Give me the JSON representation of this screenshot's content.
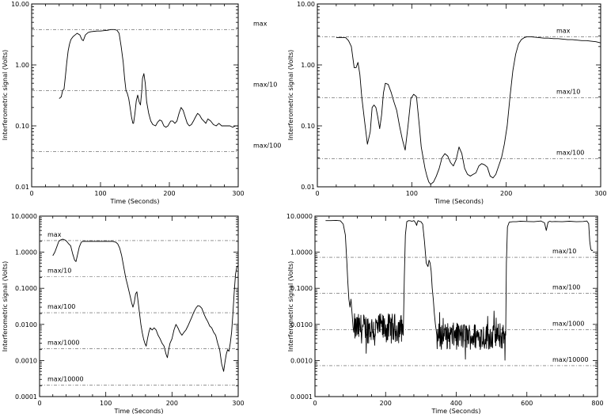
{
  "chart_data": [
    {
      "type": "line",
      "title": "",
      "xlabel": "Time (Seconds)",
      "ylabel": "Interferometric signal (Volts)",
      "xlim": [
        0,
        300
      ],
      "ylim": [
        0.01,
        10
      ],
      "yscale": "log",
      "xticks": [
        0,
        100,
        200,
        300
      ],
      "xtick_labels": [
        "0",
        "100",
        "200",
        "300"
      ],
      "yticks": [
        0.01,
        0.1,
        1,
        10
      ],
      "ytick_labels": [
        "0.01",
        "0.10",
        "1.00",
        "10.00"
      ],
      "grid": false,
      "reference_lines": [
        {
          "label": "max",
          "value": 3.8
        },
        {
          "label": "max/10",
          "value": 0.38
        },
        {
          "label": "max/100",
          "value": 0.038
        }
      ],
      "series": [
        {
          "x": [
            40,
            43,
            45,
            47,
            49,
            51,
            53,
            55,
            57,
            60,
            63,
            66,
            70,
            73,
            75,
            78,
            82,
            86,
            90,
            95,
            100,
            105,
            110,
            115,
            120,
            124,
            127,
            130,
            133,
            135,
            137,
            139,
            141,
            143,
            145,
            147,
            148,
            150,
            152,
            154,
            156,
            158,
            160,
            161,
            163,
            165,
            167,
            170,
            173,
            176,
            180,
            183,
            186,
            189,
            192,
            195,
            198,
            200,
            202,
            205,
            208,
            211,
            214,
            217,
            220,
            223,
            226,
            229,
            232,
            235,
            238,
            241,
            244,
            247,
            250,
            253,
            256,
            260,
            264,
            268,
            272,
            276,
            280,
            284,
            288,
            292,
            296,
            300
          ],
          "y": [
            0.28,
            0.3,
            0.38,
            0.4,
            0.65,
            1.1,
            1.7,
            2.2,
            2.6,
            2.9,
            3.1,
            3.3,
            3.1,
            2.6,
            2.5,
            3.1,
            3.4,
            3.5,
            3.55,
            3.6,
            3.6,
            3.65,
            3.7,
            3.8,
            3.8,
            3.7,
            3.3,
            2.0,
            1.1,
            0.6,
            0.38,
            0.34,
            0.28,
            0.2,
            0.14,
            0.11,
            0.11,
            0.16,
            0.26,
            0.32,
            0.25,
            0.22,
            0.38,
            0.6,
            0.72,
            0.5,
            0.25,
            0.16,
            0.12,
            0.105,
            0.1,
            0.115,
            0.125,
            0.12,
            0.1,
            0.095,
            0.1,
            0.11,
            0.12,
            0.12,
            0.11,
            0.12,
            0.16,
            0.2,
            0.18,
            0.14,
            0.11,
            0.1,
            0.105,
            0.12,
            0.14,
            0.16,
            0.15,
            0.13,
            0.12,
            0.11,
            0.13,
            0.12,
            0.105,
            0.1,
            0.11,
            0.1,
            0.1,
            0.1,
            0.1,
            0.095,
            0.1,
            0.1
          ]
        }
      ]
    },
    {
      "type": "line",
      "title": "",
      "xlabel": "Time (Seconds)",
      "ylabel": "Interferometric signal (Volts)",
      "xlim": [
        0,
        300
      ],
      "ylim": [
        0.01,
        10
      ],
      "yscale": "log",
      "xticks": [
        0,
        100,
        200,
        300
      ],
      "xtick_labels": [
        "0",
        "100",
        "200",
        "300"
      ],
      "yticks": [
        0.01,
        0.1,
        1,
        10
      ],
      "ytick_labels": [
        "0.01",
        "0.10",
        "1.00",
        "10.00"
      ],
      "grid": false,
      "reference_lines": [
        {
          "label": "max",
          "value": 2.9
        },
        {
          "label": "max/10",
          "value": 0.29
        },
        {
          "label": "max/100",
          "value": 0.029
        }
      ],
      "series": [
        {
          "x": [
            20,
            25,
            30,
            33,
            36,
            39,
            41,
            43,
            45,
            47,
            50,
            53,
            56,
            58,
            60,
            62,
            64,
            66,
            68,
            70,
            72,
            75,
            78,
            81,
            84,
            87,
            90,
            93,
            96,
            99,
            102,
            105,
            108,
            110,
            112,
            114,
            116,
            118,
            120,
            123,
            126,
            129,
            132,
            135,
            138,
            141,
            144,
            147,
            150,
            153,
            156,
            159,
            162,
            165,
            168,
            171,
            174,
            177,
            180,
            183,
            186,
            189,
            192,
            195,
            198,
            201,
            204,
            207,
            210,
            213,
            216,
            219,
            222,
            226,
            230,
            235,
            240,
            245,
            250,
            255,
            260,
            265,
            270,
            275,
            280,
            285,
            290,
            295,
            300
          ],
          "y": [
            2.8,
            2.8,
            2.8,
            2.5,
            2.0,
            0.9,
            0.9,
            1.1,
            0.7,
            0.3,
            0.12,
            0.05,
            0.08,
            0.2,
            0.22,
            0.2,
            0.14,
            0.09,
            0.15,
            0.35,
            0.5,
            0.48,
            0.36,
            0.25,
            0.18,
            0.1,
            0.06,
            0.04,
            0.1,
            0.28,
            0.33,
            0.3,
            0.1,
            0.045,
            0.03,
            0.02,
            0.015,
            0.012,
            0.011,
            0.012,
            0.015,
            0.02,
            0.03,
            0.035,
            0.032,
            0.025,
            0.022,
            0.028,
            0.045,
            0.035,
            0.02,
            0.016,
            0.015,
            0.016,
            0.017,
            0.022,
            0.024,
            0.023,
            0.021,
            0.015,
            0.014,
            0.016,
            0.022,
            0.03,
            0.05,
            0.1,
            0.3,
            0.8,
            1.5,
            2.2,
            2.6,
            2.8,
            2.9,
            2.9,
            2.85,
            2.8,
            2.75,
            2.75,
            2.7,
            2.7,
            2.65,
            2.6,
            2.6,
            2.55,
            2.5,
            2.5,
            2.45,
            2.4,
            2.3
          ]
        }
      ]
    },
    {
      "type": "line",
      "title": "",
      "xlabel": "Time (Seconds)",
      "ylabel": "Interferometric signal (Volts)",
      "xlim": [
        0,
        300
      ],
      "ylim": [
        0.0001,
        10
      ],
      "yscale": "log",
      "xticks": [
        0,
        100,
        200,
        300
      ],
      "xtick_labels": [
        "0",
        "100",
        "200",
        "300"
      ],
      "yticks": [
        0.0001,
        0.001,
        0.01,
        0.1,
        1,
        10
      ],
      "ytick_labels": [
        "0.0001",
        "0.0010",
        "0.0100",
        "0.1000",
        "1.0000",
        "10.0000"
      ],
      "grid": false,
      "reference_lines": [
        {
          "label": "max",
          "value": 2.1
        },
        {
          "label": "max/10",
          "value": 0.21
        },
        {
          "label": "max/100",
          "value": 0.021
        },
        {
          "label": "max/1000",
          "value": 0.0021
        },
        {
          "label": "max/10000",
          "value": 0.00021
        }
      ],
      "series": [
        {
          "x": [
            20,
            23,
            26,
            29,
            32,
            35,
            38,
            41,
            44,
            47,
            50,
            53,
            55,
            57,
            60,
            63,
            66,
            70,
            75,
            80,
            85,
            90,
            95,
            100,
            105,
            110,
            115,
            118,
            121,
            124,
            127,
            130,
            133,
            136,
            139,
            141,
            143,
            145,
            147,
            149,
            151,
            153,
            155,
            157,
            159,
            161,
            163,
            165,
            167,
            170,
            173,
            176,
            179,
            182,
            185,
            188,
            191,
            193,
            195,
            197,
            200,
            203,
            206,
            209,
            212,
            215,
            218,
            221,
            224,
            227,
            230,
            233,
            236,
            239,
            242,
            245,
            248,
            251,
            254,
            257,
            260,
            263,
            266,
            269,
            272,
            275,
            278,
            280,
            282,
            284,
            286,
            288,
            290,
            292,
            294,
            296,
            298,
            300
          ],
          "y": [
            0.8,
            1.0,
            1.4,
            2.0,
            2.2,
            2.3,
            2.2,
            2.0,
            1.7,
            1.5,
            0.9,
            0.6,
            0.55,
            0.8,
            1.4,
            1.9,
            2.0,
            2.0,
            2.0,
            2.0,
            2.0,
            2.0,
            2.0,
            2.0,
            2.0,
            2.0,
            1.9,
            1.7,
            1.3,
            0.8,
            0.4,
            0.2,
            0.12,
            0.07,
            0.04,
            0.03,
            0.04,
            0.07,
            0.08,
            0.04,
            0.02,
            0.01,
            0.006,
            0.004,
            0.003,
            0.0025,
            0.004,
            0.006,
            0.008,
            0.007,
            0.008,
            0.007,
            0.005,
            0.004,
            0.003,
            0.0025,
            0.0015,
            0.0012,
            0.002,
            0.003,
            0.004,
            0.007,
            0.01,
            0.008,
            0.006,
            0.005,
            0.006,
            0.007,
            0.009,
            0.012,
            0.016,
            0.022,
            0.028,
            0.033,
            0.032,
            0.028,
            0.02,
            0.015,
            0.012,
            0.009,
            0.008,
            0.006,
            0.005,
            0.003,
            0.002,
            0.0008,
            0.0005,
            0.0009,
            0.0015,
            0.002,
            0.0018,
            0.003,
            0.006,
            0.02,
            0.08,
            0.25,
            0.4,
            0.42
          ]
        }
      ]
    },
    {
      "type": "line",
      "title": "",
      "xlabel": "Time (Seconds)",
      "ylabel": "Interferometric signal (Volts)",
      "xlim": [
        0,
        800
      ],
      "ylim": [
        0.0001,
        10
      ],
      "yscale": "log",
      "xticks": [
        0,
        200,
        400,
        600,
        800
      ],
      "xtick_labels": [
        "0",
        "200",
        "400",
        "600",
        "800"
      ],
      "yticks": [
        0.0001,
        0.001,
        0.01,
        0.1,
        1,
        10
      ],
      "ytick_labels": [
        "0.0001",
        "0.0010",
        "0.0100",
        "0.1000",
        "1.0000",
        "10.0000"
      ],
      "grid": false,
      "reference_lines": [
        {
          "label": "max/10",
          "value": 0.72
        },
        {
          "label": "max/100",
          "value": 0.072
        },
        {
          "label": "max/1000",
          "value": 0.0072
        },
        {
          "label": "max/10000",
          "value": 0.00072
        }
      ],
      "noisy_segments": [
        {
          "x0": 110,
          "x1": 250,
          "lo": 0.003,
          "hi": 0.02
        },
        {
          "x0": 345,
          "x1": 540,
          "lo": 0.002,
          "hi": 0.011
        }
      ],
      "series": [
        {
          "x": [
            30,
            45,
            60,
            72,
            80,
            86,
            90,
            93,
            96,
            99,
            102,
            105,
            108,
            110,
            250,
            253,
            256,
            260,
            265,
            270,
            275,
            280,
            285,
            288,
            290,
            292,
            295,
            300,
            305,
            310,
            315,
            320,
            323,
            326,
            329,
            332,
            335,
            338,
            341,
            344,
            345,
            540,
            542,
            545,
            550,
            560,
            570,
            580,
            600,
            620,
            640,
            650,
            655,
            660,
            665,
            670,
            680,
            700,
            720,
            740,
            760,
            770,
            775,
            778,
            781,
            784,
            787
          ],
          "y": [
            7.5,
            7.5,
            7.6,
            7.4,
            6.0,
            3.0,
            0.6,
            0.15,
            0.05,
            0.03,
            0.05,
            0.02,
            0.008,
            0.006,
            0.005,
            0.2,
            3.0,
            7.0,
            7.5,
            7.4,
            7.2,
            7.5,
            6.5,
            5.5,
            6.8,
            7.5,
            7.2,
            7.0,
            6.0,
            2.0,
            0.5,
            0.4,
            0.6,
            0.5,
            0.3,
            0.1,
            0.05,
            0.02,
            0.01,
            0.006,
            0.005,
            0.005,
            0.5,
            5.0,
            6.8,
            7.0,
            7.0,
            7.2,
            7.1,
            7.0,
            7.3,
            6.5,
            4.0,
            6.8,
            7.2,
            7.0,
            7.1,
            7.0,
            7.2,
            7.0,
            7.1,
            7.3,
            6.2,
            2.0,
            1.2,
            1.1,
            1.15
          ]
        }
      ]
    }
  ]
}
